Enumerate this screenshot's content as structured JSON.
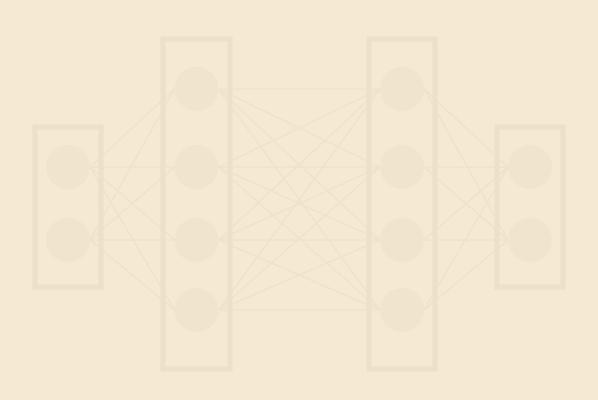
{
  "diagram": {
    "kind": "neural-network",
    "layers": [
      {
        "name": "input-layer",
        "neurons": 2
      },
      {
        "name": "hidden-layer-1",
        "neurons": 4
      },
      {
        "name": "hidden-layer-2",
        "neurons": 4
      },
      {
        "name": "output-layer",
        "neurons": 2
      }
    ],
    "fully_connected": true
  },
  "colors": {
    "background": "#f5e9d3",
    "layer_box_stroke": "#ece0ca",
    "neuron_fill": "#f0e4cc",
    "edge_stroke": "#ede2cc"
  }
}
